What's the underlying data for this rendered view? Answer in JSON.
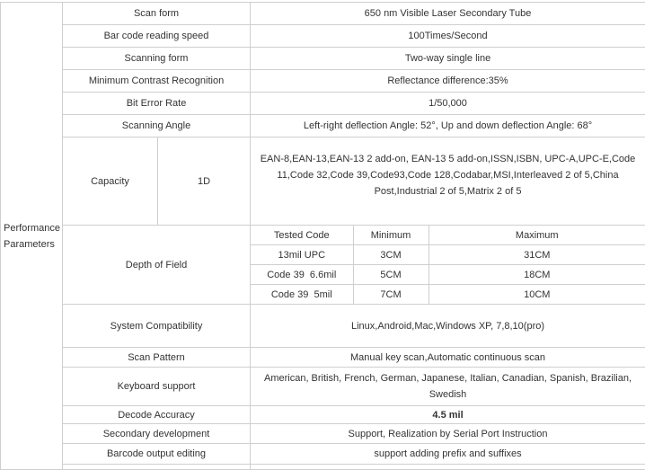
{
  "group_label": "Performance Parameters",
  "rows_top": [
    {
      "label": "Scan form",
      "value": "650 nm Visible Laser Secondary Tube"
    },
    {
      "label": "Bar code reading speed",
      "value": "100Times/Second"
    },
    {
      "label": "Scanning form",
      "value": "Two-way single line"
    },
    {
      "label": "Minimum Contrast Recognition",
      "value": "Reflectance difference:35%"
    },
    {
      "label": "Bit Error Rate",
      "value": "1/50,000"
    },
    {
      "label": "Scanning Angle",
      "value": "Left-right deflection Angle: 52°, Up and down deflection Angle: 68°"
    }
  ],
  "capacity": {
    "label": "Capacity",
    "sub": "1D",
    "value": "EAN-8,EAN-13,EAN-13 2 add-on, EAN-13 5 add-on,ISSN,ISBN, UPC-A,UPC-E,Code 11,Code 32,Code 39,Code93,Code 128,Codabar,MSI,Interleaved 2 of 5,China Post,Industrial 2 of 5,Matrix 2 of 5"
  },
  "depth_of_field": {
    "label": "Depth of Field",
    "headers": [
      "Tested Code",
      "Minimum",
      "Maximum"
    ],
    "rows": [
      [
        "13mil UPC",
        "3CM",
        "31CM"
      ],
      [
        "Code 39  6.6mil",
        "5CM",
        "18CM"
      ],
      [
        "Code 39  5mil",
        "7CM",
        "10CM"
      ]
    ]
  },
  "rows_bottom": [
    {
      "label": "System Compatibility",
      "value": "Linux,Android,Mac,Windows XP, 7,8,10(pro)"
    },
    {
      "label": "Scan Pattern",
      "value": "Manual key scan,Automatic continuous scan"
    },
    {
      "label": "Keyboard support",
      "value": "American, British, French, German, Japanese, Italian, Canadian, Spanish, Brazilian, Swedish"
    },
    {
      "label": "Decode Accuracy",
      "value": "4.5 mil"
    },
    {
      "label": "Secondary development",
      "value": "Support, Realization by Serial Port Instruction"
    },
    {
      "label": "Barcode output editing",
      "value": "support adding prefix and suffixes"
    }
  ]
}
